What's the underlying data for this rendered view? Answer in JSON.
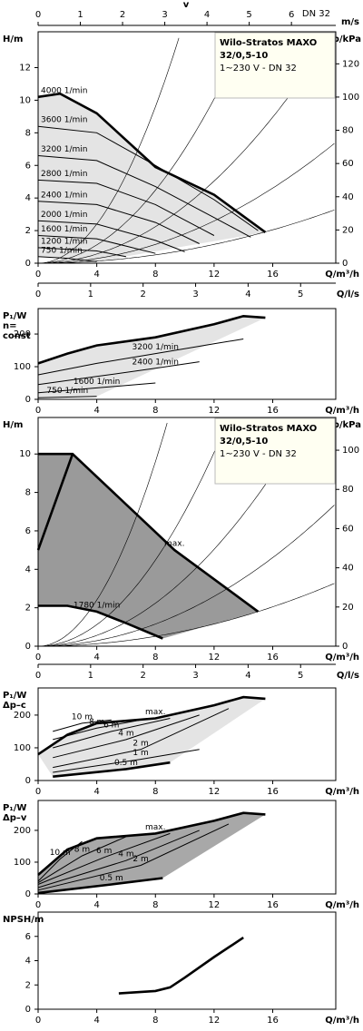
{
  "chart_data": [
    {
      "type": "line",
      "ylabel": [
        "H/m"
      ],
      "y2label": "p/kPa",
      "xlabel": "Q/m³/h",
      "xlim": [
        0,
        20.3
      ],
      "xticks": [
        0,
        4,
        8,
        12,
        16
      ],
      "ylim": [
        0,
        14.2
      ],
      "yticks": [
        0,
        2,
        4,
        6,
        8,
        10,
        12
      ],
      "y2lim": [
        0,
        139.3
      ],
      "y2ticks": [
        0,
        20,
        40,
        60,
        80,
        100,
        120
      ],
      "top_axis": {
        "label": "v",
        "unit": "m/s",
        "note": "DN 32",
        "lim": [
          0,
          7.05
        ],
        "ticks": [
          0,
          1,
          2,
          3,
          4,
          5,
          6
        ]
      },
      "lps_axis": {
        "label": "Q/l/s",
        "lim": [
          0,
          5.67
        ],
        "ticks": [
          0,
          1,
          2,
          3,
          4,
          5
        ]
      },
      "info": [
        "Wilo-Stratos MAXO",
        "32/0,5-10",
        "1~230 V - DN 32"
      ],
      "fill": "#e4e4e4",
      "series": [
        {
          "name": "4000 1/min",
          "color": "#000",
          "bold": true,
          "x": [
            0,
            1.5,
            4,
            8,
            12,
            15.5
          ],
          "values": [
            10.2,
            10.4,
            9.2,
            5.9,
            4.2,
            1.9
          ]
        },
        {
          "name": "3600 1/min",
          "color": "#000",
          "x": [
            0,
            4,
            8,
            12,
            15
          ],
          "values": [
            8.4,
            8.0,
            6.0,
            3.9,
            2.0
          ]
        },
        {
          "name": "3200 1/min",
          "color": "#000",
          "x": [
            0,
            4,
            8,
            12,
            14.5
          ],
          "values": [
            6.6,
            6.3,
            4.7,
            2.8,
            1.6
          ]
        },
        {
          "name": "2800 1/min",
          "color": "#000",
          "x": [
            0,
            4,
            8,
            12
          ],
          "values": [
            5.1,
            4.9,
            3.6,
            1.7
          ]
        },
        {
          "name": "2400 1/min",
          "color": "#000",
          "x": [
            0,
            4,
            8,
            11
          ],
          "values": [
            3.8,
            3.6,
            2.5,
            1.2
          ]
        },
        {
          "name": "2000 1/min",
          "color": "#000",
          "x": [
            0,
            4,
            8,
            10
          ],
          "values": [
            2.6,
            2.4,
            1.4,
            0.7
          ]
        },
        {
          "name": "1600 1/min",
          "color": "#000",
          "x": [
            0,
            4,
            8
          ],
          "values": [
            1.7,
            1.5,
            0.6
          ]
        },
        {
          "name": "1200 1/min",
          "color": "#000",
          "x": [
            0,
            4,
            6
          ],
          "values": [
            0.95,
            0.75,
            0.4
          ]
        },
        {
          "name": "750 1/min",
          "color": "#000",
          "x": [
            0,
            2,
            4
          ],
          "values": [
            0.4,
            0.3,
            0.1
          ]
        }
      ]
    },
    {
      "type": "line",
      "ylabel": [
        "P₁/W",
        "n=",
        "const"
      ],
      "xlabel": "Q/m³/h",
      "xlim": [
        0,
        20.3
      ],
      "xticks": [
        0,
        4,
        8,
        12,
        16
      ],
      "ylim": [
        0,
        278
      ],
      "yticks": [
        0,
        100,
        200
      ],
      "fill": "#e4e4e4",
      "series": [
        {
          "color": "#000",
          "bold": true,
          "x": [
            0,
            2,
            4,
            8,
            12,
            14,
            15.5
          ],
          "values": [
            110,
            140,
            165,
            190,
            230,
            255,
            250
          ]
        },
        {
          "name": "3200 1/min",
          "color": "#000",
          "x": [
            0,
            4,
            8,
            12,
            14
          ],
          "values": [
            75,
            110,
            140,
            170,
            185
          ]
        },
        {
          "name": "2400 1/min",
          "color": "#000",
          "x": [
            0,
            4,
            8,
            11
          ],
          "values": [
            45,
            70,
            95,
            115
          ]
        },
        {
          "name": "1600 1/min",
          "color": "#000",
          "x": [
            0,
            4,
            8
          ],
          "values": [
            20,
            35,
            50
          ]
        },
        {
          "name": "750 1/min",
          "color": "#000",
          "x": [
            0,
            2,
            4
          ],
          "values": [
            5,
            7,
            9
          ]
        }
      ]
    },
    {
      "type": "line",
      "ylabel": [
        "H/m"
      ],
      "y2label": "p/kPa",
      "xlabel": "Q/m³/h",
      "xlim": [
        0,
        20.3
      ],
      "xticks": [
        0,
        4,
        8,
        12,
        16
      ],
      "ylim": [
        0,
        11.9
      ],
      "yticks": [
        0,
        2,
        4,
        6,
        8,
        10
      ],
      "y2lim": [
        0,
        116.7
      ],
      "y2ticks": [
        0,
        20,
        40,
        60,
        80,
        100
      ],
      "lps_axis": {
        "label": "Q/l/s",
        "lim": [
          0,
          5.67
        ],
        "ticks": [
          0,
          1,
          2,
          3,
          4,
          5
        ]
      },
      "info": [
        "Wilo-Stratos MAXO",
        "32/0,5-10",
        "1~230 V - DN 32"
      ],
      "fill": "#9a9a9a",
      "series": [
        {
          "name": "max.",
          "color": "#000",
          "bold": true,
          "x": [
            0,
            2.35,
            9.3,
            15
          ],
          "values": [
            10,
            10,
            5,
            1.8
          ]
        },
        {
          "color": "#000",
          "bold": true,
          "x": [
            0,
            2.35
          ],
          "values": [
            5,
            10
          ]
        },
        {
          "name": "1780 1/min",
          "color": "#000",
          "bold": true,
          "x": [
            0,
            2,
            4,
            6,
            8.5
          ],
          "values": [
            2.1,
            2.1,
            1.8,
            1.2,
            0.4
          ]
        }
      ]
    },
    {
      "type": "line",
      "ylabel": [
        "P₁/W",
        "Δp–c"
      ],
      "xlabel": "Q/m³/h",
      "xlim": [
        0,
        20.3
      ],
      "xticks": [
        0,
        4,
        8,
        12,
        16
      ],
      "ylim": [
        0,
        283
      ],
      "yticks": [
        0,
        100,
        200
      ],
      "fill": "#e4e4e4",
      "series": [
        {
          "name": "max.",
          "color": "#000",
          "bold": true,
          "x": [
            0,
            2,
            4,
            8,
            12,
            14,
            15.5
          ],
          "values": [
            80,
            140,
            175,
            190,
            230,
            255,
            250
          ]
        },
        {
          "name": "10 m",
          "color": "#000",
          "x": [
            1,
            3,
            5
          ],
          "values": [
            150,
            175,
            185
          ]
        },
        {
          "name": "8 m",
          "color": "#000",
          "x": [
            1,
            4,
            7
          ],
          "values": [
            125,
            160,
            185
          ]
        },
        {
          "name": "6 m",
          "color": "#000",
          "x": [
            1,
            5,
            9
          ],
          "values": [
            100,
            150,
            190
          ]
        },
        {
          "name": "4 m",
          "color": "#000",
          "x": [
            1,
            6,
            11
          ],
          "values": [
            70,
            125,
            200
          ]
        },
        {
          "name": "2 m",
          "color": "#000",
          "x": [
            1,
            7,
            13
          ],
          "values": [
            40,
            95,
            220
          ]
        },
        {
          "name": "1 m",
          "color": "#000",
          "x": [
            1,
            7,
            11
          ],
          "values": [
            25,
            65,
            95
          ]
        },
        {
          "name": "0.5 m",
          "color": "#000",
          "bold": true,
          "x": [
            1,
            6,
            9
          ],
          "values": [
            12,
            35,
            55
          ]
        }
      ]
    },
    {
      "type": "line",
      "ylabel": [
        "P₁/W",
        "Δp–v"
      ],
      "xlabel": "Q/m³/h",
      "xlim": [
        0,
        20.3
      ],
      "xticks": [
        0,
        4,
        8,
        12,
        16
      ],
      "ylim": [
        0,
        294
      ],
      "yticks": [
        0,
        100,
        200
      ],
      "fill": "#a8a8a8",
      "series": [
        {
          "name": "max.",
          "color": "#000",
          "bold": true,
          "x": [
            0,
            2,
            4,
            8,
            12,
            14,
            15.5
          ],
          "values": [
            60,
            140,
            175,
            190,
            230,
            255,
            250
          ]
        },
        {
          "name": "10 m",
          "color": "#000",
          "x": [
            0,
            1.5,
            3
          ],
          "values": [
            40,
            110,
            165
          ]
        },
        {
          "name": "8 m",
          "color": "#000",
          "x": [
            0,
            3,
            6
          ],
          "values": [
            35,
            120,
            180
          ]
        },
        {
          "name": "6 m",
          "color": "#000",
          "x": [
            0,
            4.5,
            9
          ],
          "values": [
            30,
            115,
            190
          ]
        },
        {
          "name": "4 m",
          "color": "#000",
          "x": [
            0,
            6,
            11
          ],
          "values": [
            20,
            105,
            200
          ]
        },
        {
          "name": "2 m",
          "color": "#000",
          "x": [
            0,
            7,
            13
          ],
          "values": [
            12,
            90,
            220
          ]
        },
        {
          "name": "0.5 m",
          "color": "#000",
          "bold": true,
          "x": [
            0,
            5,
            8.5
          ],
          "values": [
            3,
            30,
            50
          ]
        }
      ]
    },
    {
      "type": "line",
      "ylabel": [
        "NPSH/m"
      ],
      "xlabel": "Q/m³/h",
      "xlim": [
        0,
        20.3
      ],
      "xticks": [
        0,
        4,
        8,
        12,
        16
      ],
      "ylim": [
        0,
        8
      ],
      "yticks": [
        0,
        2,
        4,
        6
      ],
      "series": [
        {
          "color": "#000",
          "bold": true,
          "x": [
            5.5,
            8,
            9,
            10,
            12,
            14
          ],
          "values": [
            1.3,
            1.5,
            1.8,
            2.6,
            4.3,
            5.9
          ]
        }
      ]
    }
  ]
}
